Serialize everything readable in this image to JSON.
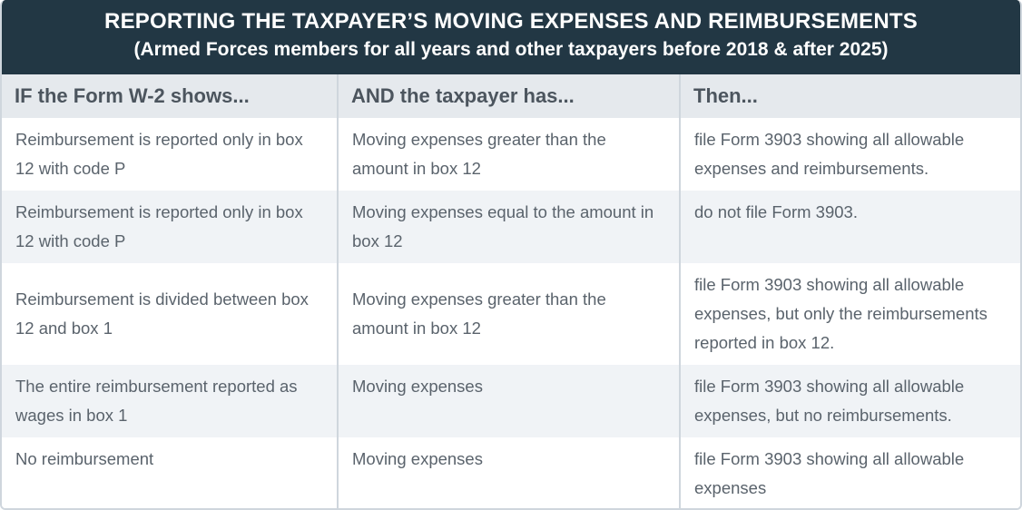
{
  "banner": {
    "title": "REPORTING THE TAXPAYER’S MOVING EXPENSES AND REIMBURSEMENTS",
    "subtitle": "(Armed Forces members for all years and other taxpayers before 2018 & after 2025)"
  },
  "colors": {
    "banner_bg": "#223744",
    "header_bg": "#e5e9ed",
    "row_alt_bg": "#f0f3f6",
    "border": "#cfd6dd",
    "text": "#5a636c"
  },
  "table": {
    "headers": [
      "IF the Form W-2 shows...",
      "AND the taxpayer has...",
      "Then..."
    ],
    "rows": [
      {
        "w2": "Reimbursement is reported only in box 12 with code P",
        "taxpayer": "Moving expenses greater than the amount in box 12",
        "then": "file Form 3903 showing all allowable expenses and reimbursements."
      },
      {
        "w2": "Reimbursement is reported only in box 12 with code P",
        "taxpayer": "Moving expenses equal to the amount in box 12",
        "then": "do not file Form 3903."
      },
      {
        "w2": "Reimbursement is divided between box 12 and box 1",
        "taxpayer": "Moving expenses greater than the amount in box 12",
        "then": "file Form 3903 showing all allowable expenses, but only the reimbursements reported in box 12."
      },
      {
        "w2": "The entire reimbursement reported as wages in box 1",
        "taxpayer": "Moving expenses",
        "then": "file Form 3903 showing all allowable expenses, but no reimbursements."
      },
      {
        "w2": "No reimbursement",
        "taxpayer": "Moving expenses",
        "then": "file Form 3903 showing all allowable expenses"
      }
    ]
  }
}
